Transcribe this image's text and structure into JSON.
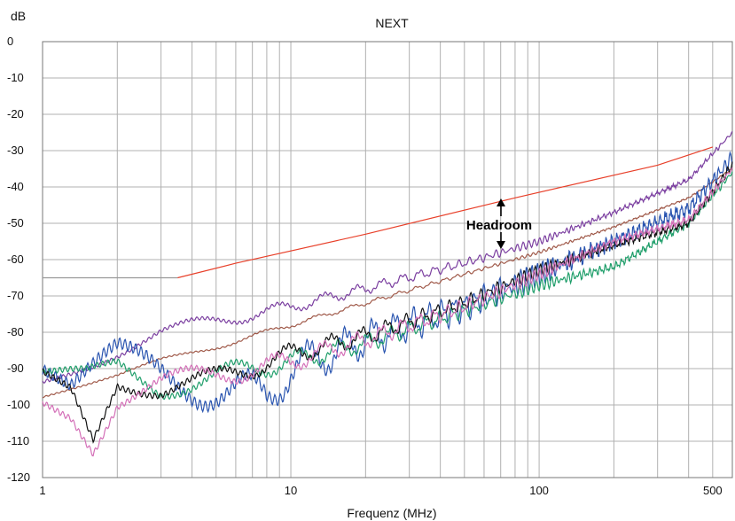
{
  "chart_data": {
    "type": "line",
    "title": "NEXT",
    "xlabel": "Frequenz (MHz)",
    "ylabel": "dB",
    "x_scale": "log",
    "xlim": [
      1,
      600
    ],
    "ylim": [
      -120,
      0
    ],
    "grid": true,
    "x_tick_labels": [
      "1",
      "10",
      "100",
      "500"
    ],
    "y_tick_labels": [
      "0",
      "-10",
      "-20",
      "-30",
      "-40",
      "-50",
      "-60",
      "-70",
      "-80",
      "-90",
      "-100",
      "-110",
      "-120"
    ],
    "annotation": "Headroom",
    "colors": {
      "limit_floor": "#999999",
      "limit": "#e8402a",
      "purple": "#7b3fa0",
      "brown": "#a05a4a",
      "blue": "#2a55b0",
      "green": "#1f9e6a",
      "black": "#111111",
      "pink": "#d470b8",
      "grid": "#b0b0b0"
    },
    "series": [
      {
        "color_key": "limit_floor",
        "x": [
          1,
          3.5
        ],
        "y": [
          -65,
          -65
        ]
      },
      {
        "color_key": "limit",
        "x": [
          3.5,
          6,
          20,
          80,
          300,
          500
        ],
        "y": [
          -65,
          -61,
          -53,
          -43,
          -34,
          -29
        ]
      },
      {
        "color_key": "purple",
        "x": [
          1,
          1.5,
          2,
          3,
          5,
          10,
          20,
          50,
          100,
          200,
          400,
          600
        ],
        "y": [
          -92,
          -88,
          -85,
          -80,
          -77,
          -73,
          -68,
          -61,
          -55,
          -47,
          -38,
          -25
        ]
      },
      {
        "color_key": "brown",
        "x": [
          1,
          2,
          3,
          5,
          10,
          20,
          50,
          100,
          200,
          400,
          600
        ],
        "y": [
          -97,
          -92,
          -88,
          -84,
          -78,
          -72,
          -64,
          -58,
          -51,
          -43,
          -35
        ]
      },
      {
        "color_key": "blue",
        "x": [
          1,
          1.3,
          2,
          3,
          5,
          8,
          10,
          20,
          50,
          100,
          200,
          400,
          600
        ],
        "y": [
          -92,
          -99,
          -90,
          -92,
          -95,
          -98,
          -90,
          -82,
          -73,
          -64,
          -55,
          -46,
          -32
        ]
      },
      {
        "color_key": "green",
        "x": [
          1,
          1.5,
          2,
          3,
          5,
          10,
          20,
          50,
          100,
          200,
          400,
          600
        ],
        "y": [
          -95,
          -93,
          -89,
          -95,
          -92,
          -88,
          -83,
          -74,
          -67,
          -62,
          -50,
          -36
        ]
      },
      {
        "color_key": "black",
        "x": [
          1,
          1.3,
          1.6,
          2,
          3,
          5,
          10,
          20,
          50,
          100,
          200,
          400,
          600
        ],
        "y": [
          -92,
          -95,
          -108,
          -92,
          -95,
          -93,
          -86,
          -81,
          -72,
          -63,
          -56,
          -50,
          -34
        ]
      },
      {
        "color_key": "pink",
        "x": [
          1,
          1.3,
          1.6,
          2,
          3,
          5,
          10,
          20,
          50,
          100,
          200,
          400,
          600
        ],
        "y": [
          -96,
          -100,
          -110,
          -98,
          -94,
          -92,
          -88,
          -82,
          -73,
          -64,
          -55,
          -49,
          -35
        ]
      }
    ]
  }
}
